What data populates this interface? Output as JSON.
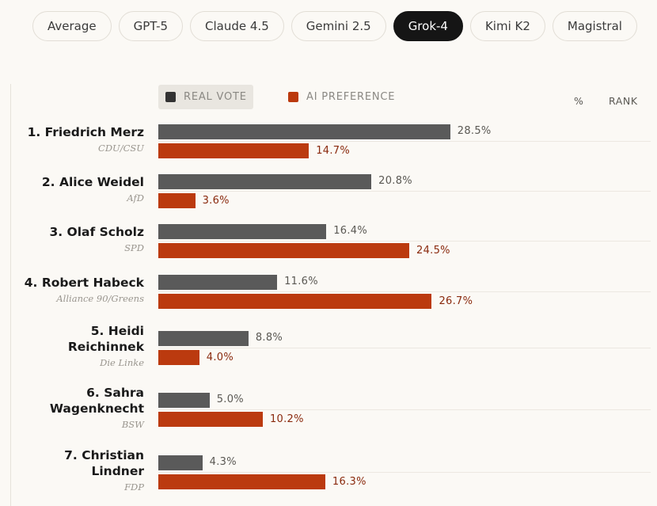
{
  "tabs": [
    {
      "label": "Average",
      "active": false
    },
    {
      "label": "GPT-5",
      "active": false
    },
    {
      "label": "Claude 4.5",
      "active": false
    },
    {
      "label": "Gemini 2.5",
      "active": false
    },
    {
      "label": "Grok-4",
      "active": true
    },
    {
      "label": "Kimi K2",
      "active": false
    },
    {
      "label": "Magistral",
      "active": false
    }
  ],
  "legend": {
    "real_vote": "REAL VOTE",
    "ai_preference": "AI PREFERENCE"
  },
  "column_headers": {
    "percent": "%",
    "rank": "RANK"
  },
  "colors": {
    "real": "#5a5a5a",
    "ai": "#bb3a0f",
    "active_tab": "#151515"
  },
  "chart_data": {
    "type": "bar",
    "orientation": "horizontal",
    "categories": [
      {
        "rank": "1.",
        "name": "Friedrich Merz",
        "party": "CDU/CSU"
      },
      {
        "rank": "2.",
        "name": "Alice Weidel",
        "party": "AfD"
      },
      {
        "rank": "3.",
        "name": "Olaf Scholz",
        "party": "SPD"
      },
      {
        "rank": "4.",
        "name": "Robert Habeck",
        "party": "Alliance 90/Greens"
      },
      {
        "rank": "5.",
        "name": "Heidi Reichinnek",
        "party": "Die Linke"
      },
      {
        "rank": "6.",
        "name": "Sahra Wagenknecht",
        "party": "BSW"
      },
      {
        "rank": "7.",
        "name": "Christian Lindner",
        "party": "FDP"
      }
    ],
    "series": [
      {
        "name": "REAL VOTE",
        "values": [
          28.5,
          20.8,
          16.4,
          11.6,
          8.8,
          5.0,
          4.3
        ]
      },
      {
        "name": "AI PREFERENCE",
        "values": [
          14.7,
          3.6,
          24.5,
          26.7,
          4.0,
          10.2,
          16.3
        ]
      }
    ],
    "value_labels": {
      "real": [
        "28.5%",
        "20.8%",
        "16.4%",
        "11.6%",
        "8.8%",
        "5.0%",
        "4.3%"
      ],
      "ai": [
        "14.7%",
        "3.6%",
        "24.5%",
        "26.7%",
        "4.0%",
        "10.2%",
        "16.3%"
      ]
    }
  }
}
